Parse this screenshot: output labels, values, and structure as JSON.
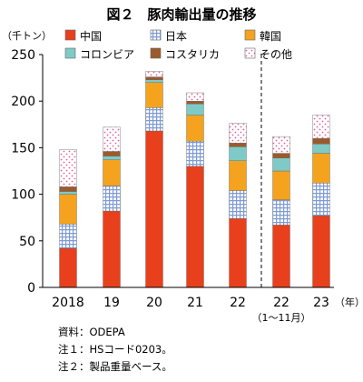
{
  "chart_data": {
    "type": "bar",
    "stacked": true,
    "title": "図２　豚肉輸出量の推移",
    "ylabel": "（千トン）",
    "xunit": "（年）",
    "ylim": [
      0,
      250
    ],
    "yticks": [
      0,
      50,
      100,
      150,
      200,
      250
    ],
    "categories": [
      "2018",
      "19",
      "20",
      "21",
      "22",
      "22",
      "23"
    ],
    "category_sublabels": [
      "",
      "",
      "",
      "",
      "",
      "（1～11月）",
      ""
    ],
    "separator_after_index": 4,
    "legend_position": "top",
    "series": [
      {
        "name": "中国",
        "color": "#e8401c",
        "pattern": "solid",
        "values": [
          42,
          82,
          168,
          130,
          74,
          67,
          77
        ]
      },
      {
        "name": "日本",
        "color": "#8aa4d6",
        "pattern": "grid",
        "values": [
          26,
          27,
          25,
          27,
          30,
          27,
          35
        ]
      },
      {
        "name": "韓国",
        "color": "#f5a31e",
        "pattern": "solid",
        "values": [
          32,
          28,
          27,
          28,
          32,
          31,
          32
        ]
      },
      {
        "name": "コロンビア",
        "color": "#7fcac6",
        "pattern": "solid",
        "values": [
          3,
          4,
          3,
          12,
          15,
          14,
          10
        ]
      },
      {
        "name": "コスタリカ",
        "color": "#9c5a2a",
        "pattern": "solid",
        "values": [
          5,
          5,
          3,
          3,
          4,
          5,
          6
        ]
      },
      {
        "name": "その他",
        "color": "#e0609a",
        "pattern": "dots",
        "values": [
          40,
          26,
          6,
          9,
          21,
          18,
          25
        ]
      }
    ]
  },
  "notes": {
    "source": "資料：ODEPA",
    "note1": "注１：HSコード0203。",
    "note2": "注２：製品重量ベース。"
  }
}
